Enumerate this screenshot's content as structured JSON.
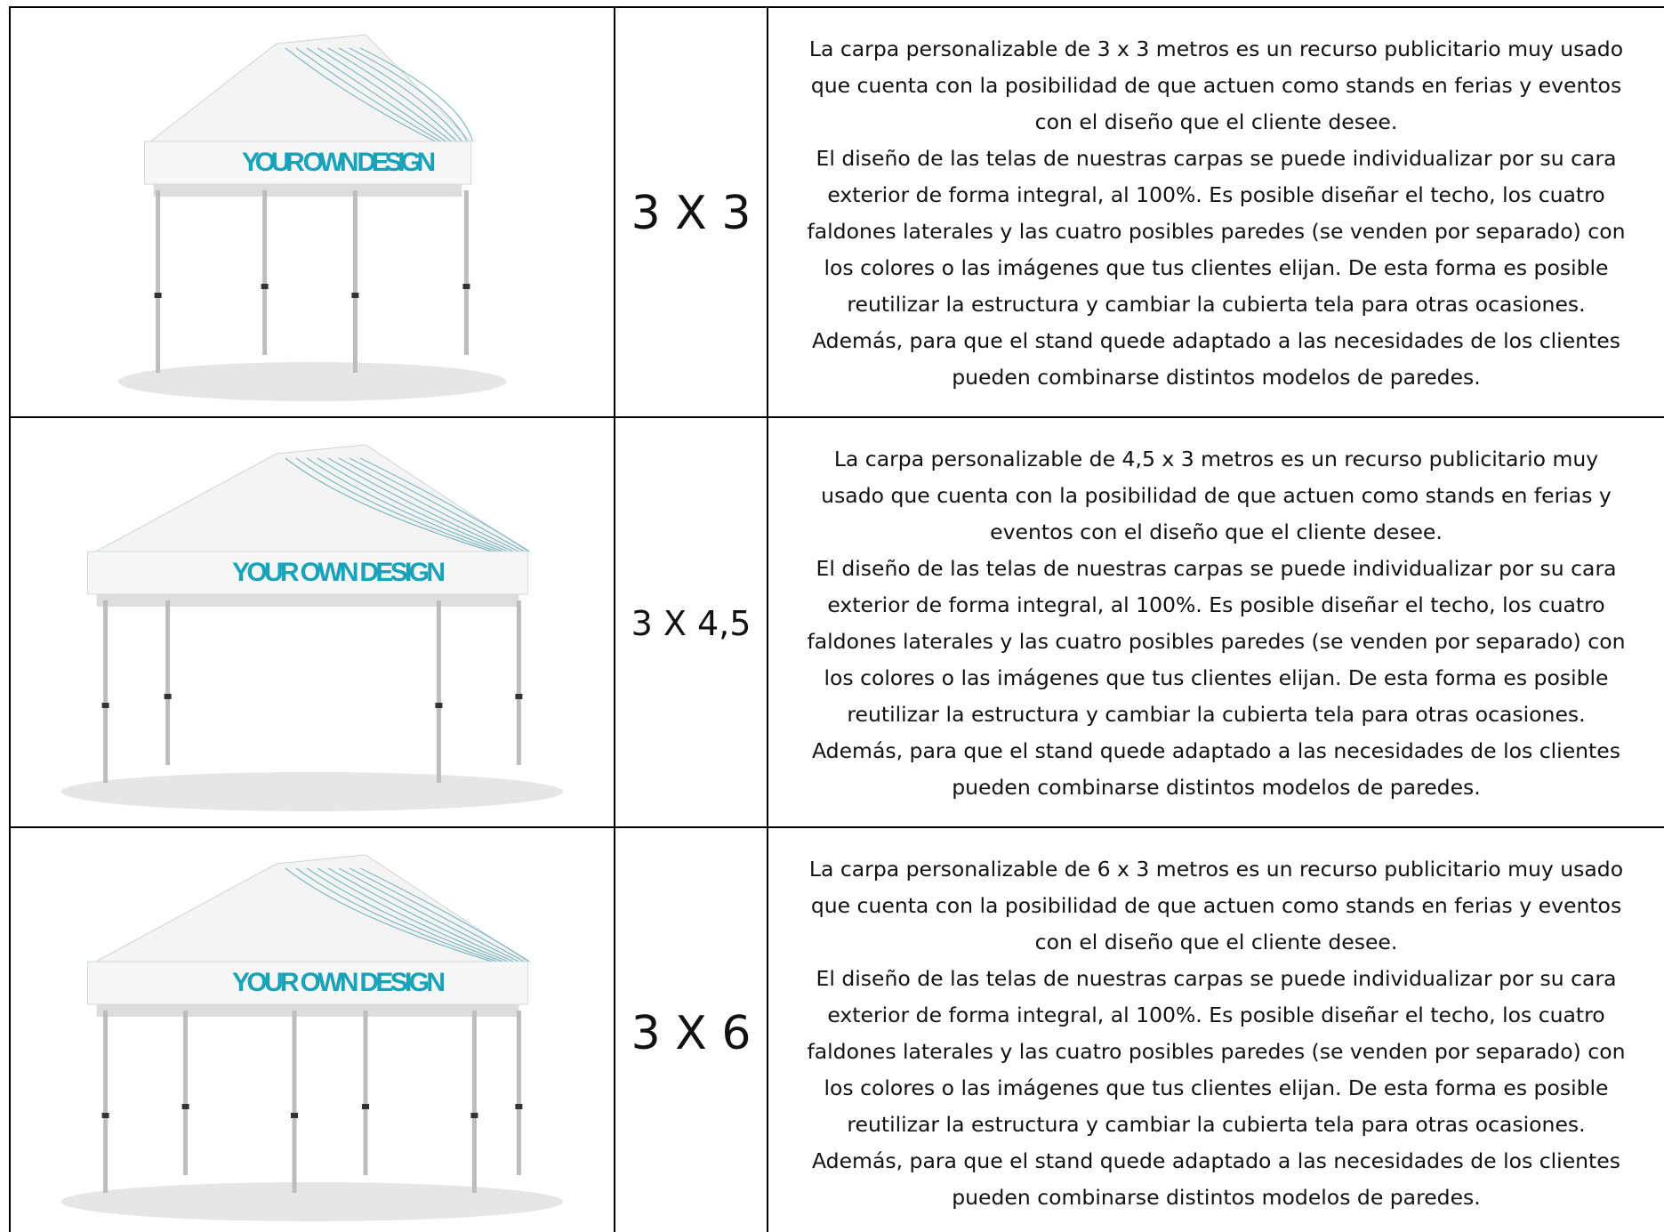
{
  "table": {
    "rows": [
      {
        "image_text": "YOUR OWN DESIGN",
        "size": "3 X 3",
        "description": [
          "La carpa personalizable de 3 x 3 metros es un recurso publicitario muy usado",
          "que cuenta con la posibilidad de que actuen como stands en ferias y eventos",
          "con el diseño que el cliente desee.",
          "El diseño de las telas de nuestras carpas se puede individualizar por su cara",
          "exterior de forma integral, al 100%. Es posible diseñar el techo, los cuatro",
          "faldones laterales y las cuatro posibles paredes (se venden por separado) con",
          "los colores o las imágenes que tus clientes elijan. De esta forma es posible",
          "reutilizar la estructura y cambiar la cubierta tela para otras ocasiones.",
          "Además, para que el stand quede adaptado a las necesidades de los clientes",
          "pueden combinarse distintos modelos de paredes."
        ]
      },
      {
        "image_text": "YOUR OWN DESIGN",
        "size": "3 X 4,5",
        "description": [
          "La carpa personalizable de 4,5 x 3 metros es un recurso publicitario muy",
          "usado que cuenta con la posibilidad de que actuen como stands en ferias y",
          "eventos con el diseño que el cliente desee.",
          "El diseño de las telas de nuestras carpas se puede individualizar por su cara",
          "exterior de forma integral, al 100%. Es posible diseñar el techo, los cuatro",
          "faldones laterales y las cuatro posibles paredes (se venden por separado) con",
          "los colores o las imágenes que tus clientes elijan. De esta forma es posible",
          "reutilizar la estructura y cambiar la cubierta tela para otras ocasiones.",
          "Además, para que el stand quede adaptado a las necesidades de los clientes",
          "pueden combinarse distintos modelos de paredes."
        ]
      },
      {
        "image_text": "YOUR OWN DESIGN",
        "size": "3 X 6",
        "description": [
          "La carpa personalizable de 6 x 3 metros es un recurso publicitario muy usado",
          "que cuenta con la posibilidad de que actuen como stands en ferias y eventos",
          "con el diseño que el cliente desee.",
          "El diseño de las telas de nuestras carpas se puede individualizar por su cara",
          "exterior de forma integral, al 100%. Es posible diseñar el techo, los cuatro",
          "faldones laterales y las cuatro posibles paredes (se venden por separado) con",
          "los colores o las imágenes que tus clientes elijan. De esta forma es posible",
          "reutilizar la estructura y cambiar la cubierta tela para otras ocasiones.",
          "Además, para que el stand quede adaptado a las necesidades de los clientes",
          "pueden combinarse distintos modelos de paredes."
        ]
      }
    ]
  }
}
